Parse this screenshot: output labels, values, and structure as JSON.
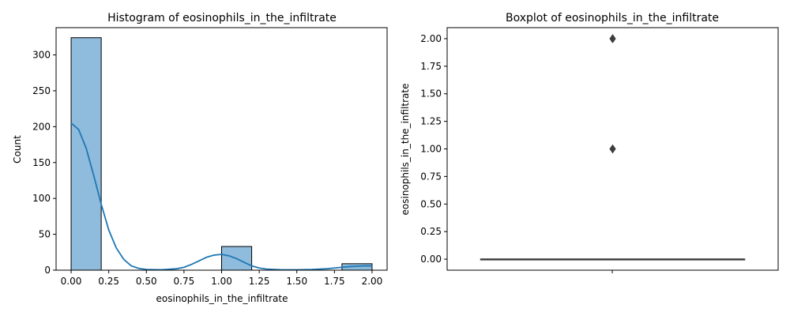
{
  "chart_data": [
    {
      "type": "bar",
      "title": "Histogram of eosinophils_in_the_infiltrate",
      "xlabel": "eosinophils_in_the_infiltrate",
      "ylabel": "Count",
      "xlim": [
        -0.1,
        2.1
      ],
      "ylim": [
        0,
        338
      ],
      "xticks": [
        "0.00",
        "0.25",
        "0.50",
        "0.75",
        "1.00",
        "1.25",
        "1.50",
        "1.75",
        "2.00"
      ],
      "yticks": [
        "0",
        "50",
        "100",
        "150",
        "200",
        "250",
        "300"
      ],
      "bins": [
        {
          "x0": 0.0,
          "x1": 0.2,
          "count": 324
        },
        {
          "x0": 0.2,
          "x1": 0.4,
          "count": 0
        },
        {
          "x0": 0.4,
          "x1": 0.6,
          "count": 0
        },
        {
          "x0": 0.6,
          "x1": 0.8,
          "count": 0
        },
        {
          "x0": 0.8,
          "x1": 1.0,
          "count": 0
        },
        {
          "x0": 1.0,
          "x1": 1.2,
          "count": 33
        },
        {
          "x0": 1.2,
          "x1": 1.4,
          "count": 0
        },
        {
          "x0": 1.4,
          "x1": 1.6,
          "count": 0
        },
        {
          "x0": 1.6,
          "x1": 1.8,
          "count": 0
        },
        {
          "x0": 1.8,
          "x1": 2.0,
          "count": 9
        }
      ],
      "kde": [
        [
          0.0,
          205
        ],
        [
          0.05,
          196
        ],
        [
          0.1,
          170
        ],
        [
          0.15,
          132
        ],
        [
          0.2,
          92
        ],
        [
          0.25,
          56
        ],
        [
          0.3,
          31
        ],
        [
          0.35,
          15
        ],
        [
          0.4,
          6
        ],
        [
          0.45,
          2.5
        ],
        [
          0.5,
          1
        ],
        [
          0.6,
          0.5
        ],
        [
          0.7,
          2
        ],
        [
          0.75,
          4
        ],
        [
          0.8,
          8
        ],
        [
          0.85,
          13
        ],
        [
          0.9,
          18
        ],
        [
          0.95,
          21
        ],
        [
          1.0,
          22
        ],
        [
          1.05,
          20
        ],
        [
          1.1,
          16
        ],
        [
          1.15,
          11
        ],
        [
          1.2,
          6
        ],
        [
          1.25,
          3
        ],
        [
          1.3,
          1.5
        ],
        [
          1.4,
          0.5
        ],
        [
          1.5,
          0.5
        ],
        [
          1.6,
          1
        ],
        [
          1.7,
          2
        ],
        [
          1.75,
          3
        ],
        [
          1.8,
          4
        ],
        [
          1.85,
          5
        ],
        [
          1.9,
          5.5
        ],
        [
          1.95,
          6
        ],
        [
          2.0,
          6
        ]
      ],
      "colors": {
        "bar_fill": "#8fbbdc",
        "bar_edge": "#000000",
        "kde": "#1f77b4"
      }
    },
    {
      "type": "box",
      "title": "Boxplot of eosinophils_in_the_infiltrate",
      "ylabel": "eosinophils_in_the_infiltrate",
      "ylim": [
        -0.1,
        2.1
      ],
      "yticks": [
        "0.00",
        "0.25",
        "0.50",
        "0.75",
        "1.00",
        "1.25",
        "1.50",
        "1.75",
        "2.00"
      ],
      "box": {
        "min": 0,
        "q1": 0,
        "median": 0,
        "q3": 0,
        "max": 0
      },
      "outliers": [
        1.0,
        2.0
      ],
      "colors": {
        "box_line": "#3d3d3d",
        "box_fill": "#4c72b0",
        "outlier": "#3d3d3d"
      }
    }
  ]
}
